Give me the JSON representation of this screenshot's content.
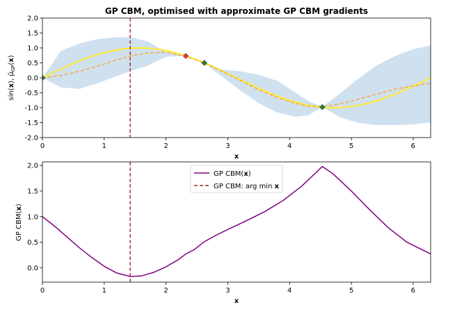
{
  "chart_data": [
    {
      "type": "line",
      "title": "GP CBM, optimised with approximate GP CBM gradients",
      "xlabel": "x",
      "ylabel_parts": [
        "sin(",
        "x",
        "), ",
        "μ̂",
        "GP",
        "(",
        "x",
        ")"
      ],
      "xlim": [
        0,
        6.283
      ],
      "ylim": [
        -2.0,
        2.0
      ],
      "xticks": [
        "0",
        "1",
        "2",
        "3",
        "4",
        "5",
        "6"
      ],
      "yticks": [
        "-2.0",
        "-1.5",
        "-1.0",
        "-0.5",
        "0.0",
        "0.5",
        "1.0",
        "1.5",
        "2.0"
      ],
      "band_x": [
        0,
        0.3,
        0.6,
        0.9,
        1.2,
        1.42,
        1.7,
        2.0,
        2.3,
        2.62,
        2.9,
        3.2,
        3.5,
        3.8,
        4.1,
        4.3,
        4.53,
        4.8,
        5.1,
        5.4,
        5.7,
        6.0,
        6.283
      ],
      "band_upper": [
        0.0,
        0.9,
        1.15,
        1.3,
        1.36,
        1.36,
        1.22,
        0.86,
        0.76,
        0.5,
        0.28,
        0.22,
        0.1,
        -0.1,
        -0.5,
        -0.78,
        -0.97,
        -0.55,
        -0.05,
        0.4,
        0.72,
        0.96,
        1.08
      ],
      "band_lower": [
        0.0,
        -0.32,
        -0.37,
        -0.18,
        0.06,
        0.22,
        0.4,
        0.7,
        0.74,
        0.5,
        0.05,
        -0.42,
        -0.85,
        -1.16,
        -1.3,
        -1.26,
        -0.97,
        -1.31,
        -1.5,
        -1.58,
        -1.58,
        -1.56,
        -1.49
      ],
      "series": [
        {
          "values_fn": "sin",
          "color": "#ffeb3b"
        },
        {
          "x": [
            0,
            0.3,
            0.6,
            0.9,
            1.2,
            1.42,
            1.7,
            2.0,
            2.32,
            2.62,
            2.9,
            3.2,
            3.5,
            3.8,
            4.1,
            4.3,
            4.53,
            4.8,
            5.1,
            5.4,
            5.7,
            6.0,
            6.283
          ],
          "y": [
            0.0,
            0.08,
            0.22,
            0.4,
            0.6,
            0.73,
            0.83,
            0.86,
            0.72,
            0.5,
            0.22,
            -0.08,
            -0.4,
            -0.66,
            -0.86,
            -0.95,
            -0.97,
            -0.88,
            -0.72,
            -0.55,
            -0.38,
            -0.27,
            -0.18
          ],
          "color": "#ff9f1c",
          "style": "dashed"
        }
      ],
      "points": [
        {
          "x": 0.0,
          "y": 0.0,
          "color": "#2e7d32"
        },
        {
          "x": 2.32,
          "y": 0.73,
          "color": "#e53935"
        },
        {
          "x": 2.62,
          "y": 0.5,
          "color": "#2e7d32"
        },
        {
          "x": 4.53,
          "y": -0.98,
          "color": "#2e7d32"
        }
      ],
      "vline": {
        "x": 1.42,
        "color": "#a02530"
      },
      "band_color": "#cfe0ef"
    },
    {
      "type": "line",
      "xlabel": "x",
      "ylabel_parts": [
        "GP CBM(",
        "x",
        ")"
      ],
      "xlim": [
        0,
        6.283
      ],
      "ylim": [
        -0.28,
        2.07
      ],
      "xticks": [
        "0",
        "1",
        "2",
        "3",
        "4",
        "5",
        "6"
      ],
      "yticks": [
        "0.0",
        "0.5",
        "1.0",
        "1.5",
        "2.0"
      ],
      "ytick_values": [
        0.0,
        0.5,
        1.0,
        1.5,
        2.0
      ],
      "series": [
        {
          "legend_parts": [
            "GP CBM(",
            "x",
            ")"
          ],
          "color": "#800080",
          "x": [
            0,
            0.2,
            0.4,
            0.6,
            0.8,
            1.0,
            1.2,
            1.42,
            1.6,
            1.8,
            2.0,
            2.2,
            2.32,
            2.45,
            2.62,
            2.8,
            3.0,
            3.3,
            3.6,
            3.9,
            4.2,
            4.53,
            4.7,
            5.0,
            5.3,
            5.6,
            5.9,
            6.283
          ],
          "y": [
            1.0,
            0.81,
            0.6,
            0.39,
            0.2,
            0.03,
            -0.1,
            -0.17,
            -0.16,
            -0.09,
            0.02,
            0.16,
            0.27,
            0.35,
            0.51,
            0.63,
            0.75,
            0.92,
            1.1,
            1.32,
            1.6,
            1.98,
            1.84,
            1.5,
            1.13,
            0.78,
            0.5,
            0.27
          ]
        },
        {
          "legend_parts": [
            "GP CBM: arg min ",
            "x"
          ],
          "color": "#a02530",
          "style": "dashed"
        }
      ],
      "vline": {
        "x": 1.42,
        "color": "#a02530"
      },
      "legend": "top-center"
    }
  ]
}
